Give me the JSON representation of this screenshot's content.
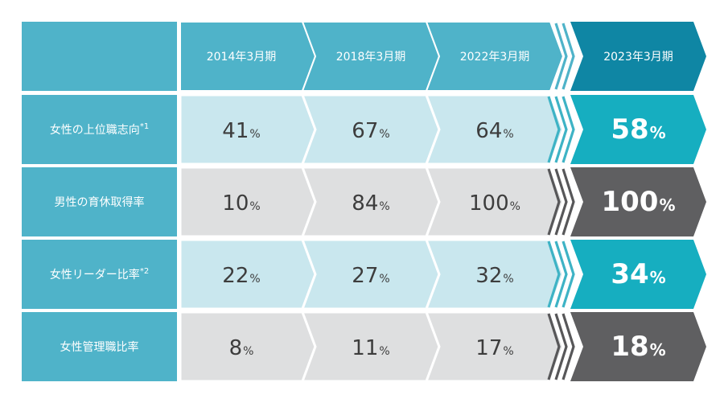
{
  "colors": {
    "header_bg": "#4fb3c9",
    "header_latest_bg": "#0f86a4",
    "row_label_bg": "#4fb3c9",
    "light_blue_cell": "#c9e7ee",
    "gray_cell": "#dedfe0",
    "latest_teal": "#16aec0",
    "latest_gray": "#5f5f61",
    "chevron_stripe_blue": "#3eb3c5",
    "chevron_stripe_gray": "#575759",
    "value_text": "#3d3d3d",
    "white": "#ffffff"
  },
  "chart_data": {
    "type": "table",
    "columns": [
      "2014年3月期",
      "2018年3月期",
      "2022年3月期",
      "2023年3月期"
    ],
    "unit": "%",
    "rows": [
      {
        "label": "女性の上位職志向",
        "note": "*1",
        "values": [
          41,
          67,
          64,
          58
        ],
        "scheme": "blue"
      },
      {
        "label": "男性の育休取得率",
        "note": "",
        "values": [
          10,
          84,
          100,
          100
        ],
        "scheme": "gray"
      },
      {
        "label": "女性リーダー比率",
        "note": "*2",
        "values": [
          22,
          27,
          32,
          34
        ],
        "scheme": "blue"
      },
      {
        "label": "女性管理職比率",
        "note": "",
        "values": [
          8,
          11,
          17,
          18
        ],
        "scheme": "gray"
      }
    ]
  }
}
